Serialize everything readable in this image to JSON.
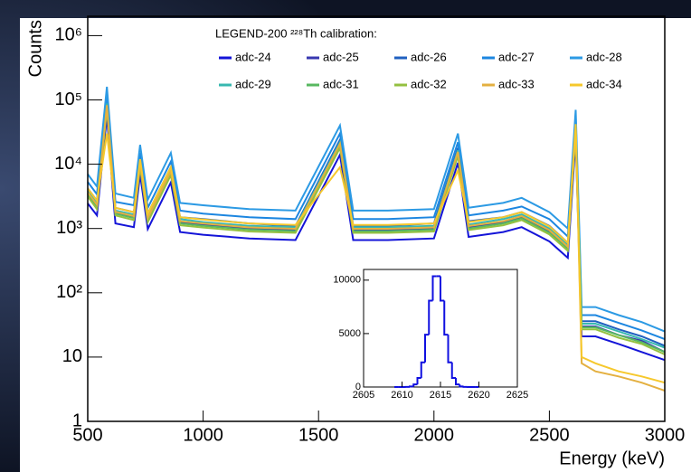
{
  "chart_data": [
    {
      "type": "line",
      "legend_title": "LEGEND-200 ²²⁸Th calibration:",
      "x_label": "Energy (keV)",
      "y_label": "Counts",
      "log_y": true,
      "xlim": [
        500,
        3000
      ],
      "xticks": [
        500,
        1000,
        1500,
        2000,
        2500,
        3000
      ],
      "ylim": [
        1,
        2000000
      ],
      "yticks": [
        1,
        10,
        {
          "value": 100,
          "label": "10²"
        },
        {
          "value": 1000,
          "label": "10³"
        },
        {
          "value": 10000,
          "label": "10⁴"
        },
        {
          "value": 100000,
          "label": "10⁵"
        },
        {
          "value": 1000000,
          "label": "10⁶"
        }
      ],
      "x": [
        500,
        540,
        583,
        620,
        700,
        727,
        760,
        860,
        900,
        1000,
        1200,
        1400,
        1593,
        1650,
        1800,
        2000,
        2104,
        2150,
        2300,
        2380,
        2500,
        2580,
        2614,
        2640,
        2700,
        2800,
        2900,
        3000
      ],
      "series": [
        {
          "name": "adc-24",
          "color": "#1414d8",
          "values": [
            2450,
            1600,
            56000,
            1200,
            1050,
            7000,
            980,
            5200,
            880,
            800,
            700,
            660,
            14000,
            660,
            660,
            700,
            10500,
            740,
            880,
            1050,
            630,
            350,
            24500,
            21,
            21,
            16,
            12,
            9
          ]
        },
        {
          "name": "adc-25",
          "color": "#3838b0",
          "values": [
            3500,
            2250,
            80000,
            1750,
            1500,
            10000,
            1400,
            7500,
            1250,
            1150,
            1000,
            950,
            20000,
            950,
            950,
            1000,
            15000,
            1050,
            1250,
            1500,
            900,
            500,
            35000,
            30,
            30,
            22,
            18,
            12
          ]
        },
        {
          "name": "adc-26",
          "color": "#2060c0",
          "values": [
            4200,
            2700,
            96000,
            2100,
            1800,
            12000,
            1700,
            9000,
            1500,
            1400,
            1200,
            1100,
            24000,
            1100,
            1100,
            1200,
            18000,
            1300,
            1500,
            1800,
            1100,
            600,
            42000,
            36,
            36,
            27,
            21,
            15
          ]
        },
        {
          "name": "adc-27",
          "color": "#1c86e0",
          "values": [
            5300,
            3400,
            120000,
            2600,
            2300,
            15000,
            2100,
            11000,
            1900,
            1700,
            1500,
            1400,
            30000,
            1400,
            1400,
            1500,
            22000,
            1600,
            1900,
            2200,
            1400,
            750,
            52000,
            45,
            45,
            34,
            26,
            19
          ]
        },
        {
          "name": "adc-28",
          "color": "#2c9ae4",
          "values": [
            7000,
            4500,
            160000,
            3500,
            3000,
            20000,
            2800,
            15000,
            2500,
            2300,
            2000,
            1900,
            40000,
            1900,
            1900,
            2000,
            30000,
            2100,
            2500,
            3000,
            1800,
            1000,
            70000,
            60,
            60,
            45,
            35,
            25
          ]
        },
        {
          "name": "adc-29",
          "color": "#38b8b0",
          "values": [
            3850,
            2500,
            88000,
            1900,
            1650,
            11000,
            1540,
            8200,
            1400,
            1260,
            1100,
            1050,
            22000,
            1050,
            1050,
            1100,
            16500,
            1150,
            1400,
            1650,
            1000,
            550,
            38500,
            33,
            33,
            25,
            19,
            14
          ]
        },
        {
          "name": "adc-31",
          "color": "#58b860",
          "values": [
            3400,
            2200,
            77000,
            1700,
            1450,
            9600,
            1350,
            7200,
            1200,
            1100,
            960,
            910,
            19000,
            910,
            910,
            960,
            14400,
            1000,
            1200,
            1440,
            860,
            480,
            33600,
            29,
            29,
            22,
            17,
            12
          ]
        },
        {
          "name": "adc-32",
          "color": "#94c040",
          "values": [
            3150,
            2000,
            72000,
            1600,
            1350,
            9000,
            1260,
            6750,
            1125,
            1035,
            900,
            855,
            18000,
            855,
            855,
            900,
            13500,
            945,
            1125,
            1350,
            810,
            450,
            31500,
            27,
            27,
            20,
            16,
            11
          ]
        },
        {
          "name": "adc-33",
          "color": "#e4b040",
          "values": [
            3640,
            2340,
            83000,
            1820,
            1560,
            10400,
            1460,
            7800,
            1300,
            1200,
            1040,
            990,
            20800,
            990,
            990,
            1040,
            15600,
            1090,
            1300,
            1560,
            940,
            520,
            36400,
            8,
            6,
            5,
            4,
            3
          ]
        },
        {
          "name": "adc-34",
          "color": "#f6c82c",
          "values": [
            4200,
            2700,
            30000,
            2100,
            1800,
            12000,
            1700,
            9000,
            1500,
            1380,
            1200,
            1140,
            9000,
            1140,
            1140,
            1200,
            8000,
            1260,
            1500,
            1800,
            1080,
            600,
            42000,
            10,
            8,
            6,
            5,
            4
          ]
        }
      ]
    },
    {
      "type": "histogram",
      "color": "#1010e0",
      "xlim": [
        2605,
        2625
      ],
      "xticks": [
        2605,
        2610,
        2615,
        2620,
        2625
      ],
      "ylim": [
        0,
        11000
      ],
      "yticks": [
        0,
        5000,
        10000
      ],
      "bins": [
        2609,
        2609.5,
        2610,
        2610.5,
        2611,
        2611.5,
        2612,
        2612.5,
        2613,
        2613.5,
        2614,
        2614.5,
        2615,
        2615.5,
        2616,
        2616.5,
        2617,
        2617.5,
        2618,
        2618.5,
        2619,
        2619.5,
        2620
      ],
      "counts": [
        0,
        0,
        1,
        9,
        55,
        245,
        850,
        2310,
        4900,
        8080,
        10370,
        10370,
        8080,
        4900,
        2310,
        850,
        245,
        55,
        9,
        1,
        0,
        0
      ]
    }
  ]
}
